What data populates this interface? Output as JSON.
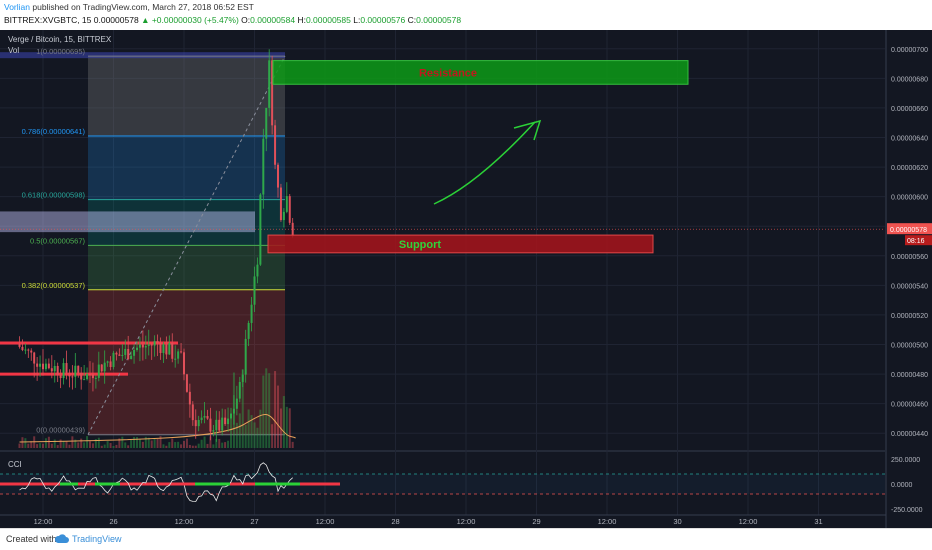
{
  "header": {
    "author": "Vorlian",
    "published_text": " published on TradingView.com, March 27, 2018 06:52 EST",
    "symbol_interval": "BITTREX:XVGBTC, 15",
    "last_price": "0.00000578",
    "change": "▲ +0.00000030 (+5.47%)",
    "o_label": "O:",
    "o_value": "0.00000584",
    "h_label": "H:",
    "h_value": "0.00000585",
    "l_label": "L:",
    "l_value": "0.00000576",
    "c_label": "C:",
    "c_value": "0.00000578"
  },
  "legend": {
    "main": "Verge / Bitcoin, 15, BITTREX",
    "volume": "Vol",
    "cci": "CCI"
  },
  "colors": {
    "background": "#131722",
    "up_candle": "#2fa84a",
    "down_candle": "#e0505a",
    "resistance_fill": "#0d9a16",
    "support_fill": "#a8141b",
    "annotation_green": "#2bd137",
    "price_tag": "#ef5350"
  },
  "annotations": {
    "resistance_label": "Resistance",
    "support_label": "Support",
    "price_tag": "0.00000578",
    "countdown": "08:16"
  },
  "fib_labels": [
    "1(0.00000695)",
    "0.786(0.00000641)",
    "0.618(0.00000598)",
    "0.5(0.00000567)",
    "0.382(0.00000537)",
    "0(0.00000439)"
  ],
  "footer": {
    "created_with": "Created with",
    "brand": "TradingView"
  },
  "chart_data": [
    {
      "type": "candlestick",
      "title": "Verge / Bitcoin, 15, BITTREX",
      "y_ticks": [
        "0.00000700",
        "0.00000680",
        "0.00000660",
        "0.00000640",
        "0.00000620",
        "0.00000600",
        "0.00000580",
        "0.00000560",
        "0.00000540",
        "0.00000520",
        "0.00000500",
        "0.00000480",
        "0.00000460",
        "0.00000440"
      ],
      "x_ticks": [
        "12:00",
        "26",
        "12:00",
        "27",
        "12:00",
        "28",
        "12:00",
        "29",
        "12:00",
        "30",
        "12:00",
        "31"
      ],
      "ylim": [
        4.3e-06,
        7.1e-06
      ],
      "price_path": {
        "x": [
          "Mar 25 08:00",
          "Mar 25 12:00",
          "Mar 25 16:00",
          "Mar 25 20:00",
          "Mar 26 00:00",
          "Mar 26 04:00",
          "Mar 26 08:00",
          "Mar 26 12:00",
          "Mar 26 14:00",
          "Mar 26 18:00",
          "Mar 26 20:00",
          "Mar 26 22:00",
          "Mar 27 00:00",
          "Mar 27 01:00",
          "Mar 27 02:00",
          "Mar 27 03:00",
          "Mar 27 04:00",
          "Mar 27 05:00",
          "Mar 27 06:00",
          "Mar 27 06:52"
        ],
        "y": [
          5e-06,
          4.88e-06,
          4.82e-06,
          4.79e-06,
          4.9e-06,
          4.97e-06,
          5.01e-06,
          4.9e-06,
          4.5e-06,
          4.44e-06,
          4.46e-06,
          4.7e-06,
          5.3e-06,
          5.6e-06,
          6.4e-06,
          6.88e-06,
          6.2e-06,
          5.9e-06,
          6e-06,
          5.78e-06
        ]
      },
      "fibonacci": [
        {
          "level": "1",
          "price": 6.95e-06
        },
        {
          "level": "0.786",
          "price": 6.41e-06
        },
        {
          "level": "0.618",
          "price": 5.98e-06
        },
        {
          "level": "0.5",
          "price": 5.67e-06
        },
        {
          "level": "0.382",
          "price": 5.37e-06
        },
        {
          "level": "0",
          "price": 4.39e-06
        }
      ],
      "zones": [
        {
          "label": "Resistance",
          "from": 6.76e-06,
          "to": 6.92e-06
        },
        {
          "label": "Support",
          "from": 5.62e-06,
          "to": 5.74e-06
        }
      ],
      "last_price": 5.78e-06
    },
    {
      "type": "line",
      "title": "CCI",
      "y_ticks": [
        "250.0000",
        "0.0000",
        "-250.0000"
      ],
      "ylim": [
        -300,
        300
      ],
      "bands": [
        100,
        -100
      ]
    }
  ]
}
